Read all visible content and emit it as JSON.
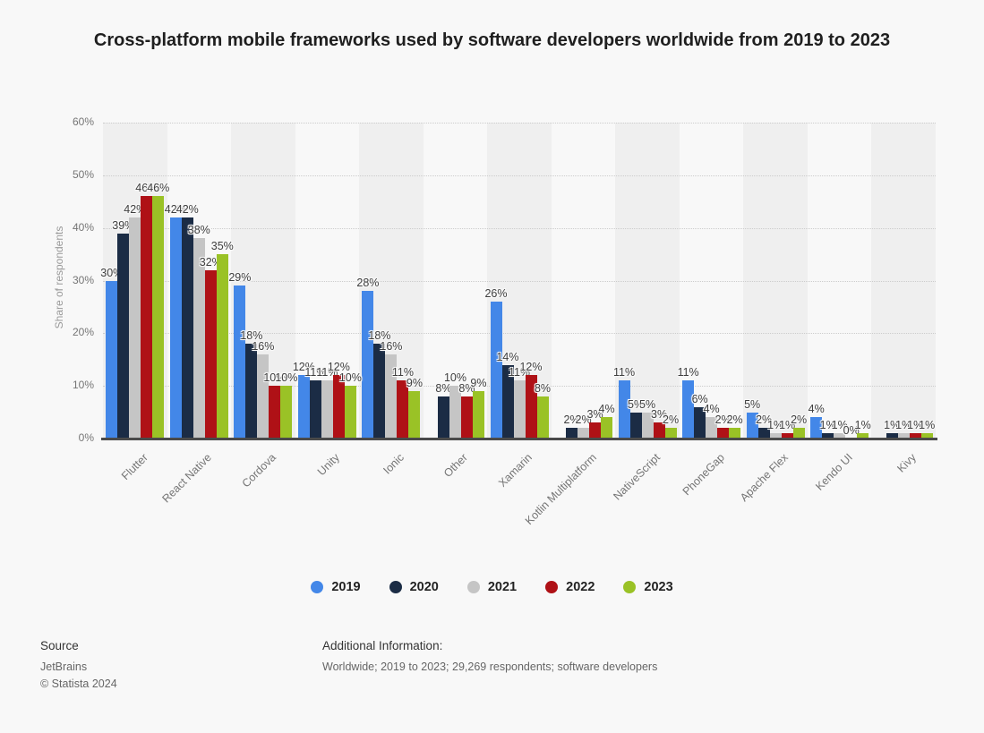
{
  "title": "Cross-platform mobile frameworks used by software developers worldwide from 2019 to 2023",
  "chart_data": {
    "type": "bar",
    "title": "Cross-platform mobile frameworks used by software developers worldwide from 2019 to 2023",
    "xlabel": "",
    "ylabel": "Share of respondents",
    "ylim": [
      0,
      60
    ],
    "yticks": [
      "0%",
      "10%",
      "20%",
      "30%",
      "40%",
      "50%",
      "60%"
    ],
    "grid": "horizontal-dotted",
    "legend_position": "bottom",
    "value_label_suffix": "%",
    "categories": [
      "Flutter",
      "React Native",
      "Cordova",
      "Unity",
      "Ionic",
      "Other",
      "Xamarin",
      "Kotlin Multiplatform",
      "NativeScript",
      "PhoneGap",
      "Apache Flex",
      "Kendo UI",
      "Kivy"
    ],
    "series": [
      {
        "name": "2019",
        "color": "#4387e8",
        "values": [
          30,
          42,
          29,
          12,
          28,
          null,
          26,
          null,
          11,
          11,
          5,
          4,
          null
        ]
      },
      {
        "name": "2020",
        "color": "#1b2c45",
        "values": [
          39,
          42,
          18,
          11,
          18,
          8,
          14,
          2,
          5,
          6,
          2,
          1,
          1
        ]
      },
      {
        "name": "2021",
        "color": "#c5c5c5",
        "values": [
          42,
          38,
          16,
          11,
          16,
          10,
          11,
          2,
          5,
          4,
          1,
          1,
          1
        ]
      },
      {
        "name": "2022",
        "color": "#af1116",
        "values": [
          46,
          32,
          10,
          12,
          11,
          8,
          12,
          3,
          3,
          2,
          1,
          0,
          1
        ]
      },
      {
        "name": "2023",
        "color": "#9ac226",
        "values": [
          46,
          35,
          10,
          10,
          9,
          9,
          8,
          4,
          2,
          2,
          2,
          1,
          1
        ]
      }
    ]
  },
  "footer": {
    "source_label": "Source",
    "source_name": "JetBrains",
    "copyright": "© Statista 2024",
    "additional_info_label": "Additional Information:",
    "additional_info": "Worldwide; 2019 to 2023; 29,269 respondents; software developers"
  }
}
